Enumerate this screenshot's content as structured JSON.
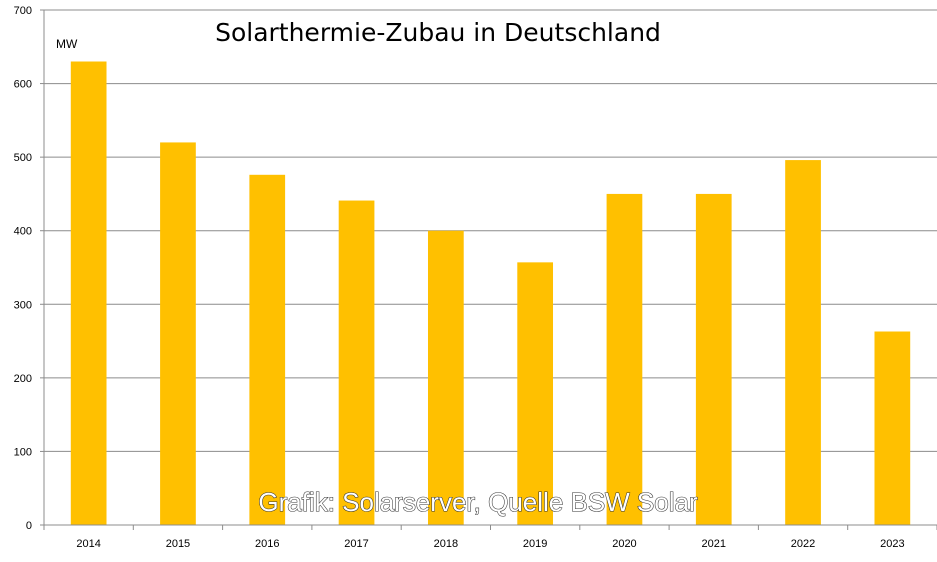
{
  "chart_data": {
    "type": "bar",
    "title": "Solarthermie-Zubau in Deutschland",
    "unit_label": "MW",
    "categories": [
      "2014",
      "2015",
      "2016",
      "2017",
      "2018",
      "2019",
      "2020",
      "2021",
      "2022",
      "2023"
    ],
    "values": [
      630,
      520,
      476,
      441,
      400,
      357,
      450,
      450,
      496,
      263
    ],
    "ylim": [
      0,
      700
    ],
    "yticks": [
      0,
      100,
      200,
      300,
      400,
      500,
      600,
      700
    ],
    "grid": true,
    "bar_color": "#FFC000",
    "grid_color": "#8c8c8c",
    "watermark": "Grafik: Solarserver, Quelle BSW Solar"
  }
}
